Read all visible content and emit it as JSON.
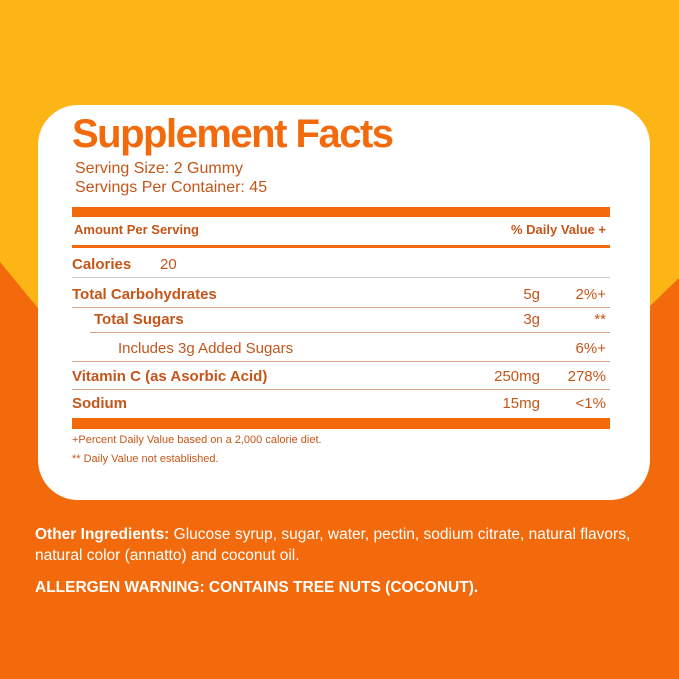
{
  "title": "Supplement Facts",
  "serving_size": "Serving Size: 2 Gummy",
  "servings_per_container": "Servings Per Container: 45",
  "header": {
    "amount": "Amount Per Serving",
    "daily_value": "% Daily Value +"
  },
  "calories": {
    "label": "Calories",
    "value": "20"
  },
  "rows": [
    {
      "label": "Total Carbohydrates",
      "amount": "5g",
      "dv": "2%+"
    },
    {
      "label": "Total Sugars",
      "amount": "3g",
      "dv": "**"
    },
    {
      "label": "Includes 3g Added Sugars",
      "amount": "",
      "dv": "6%+"
    },
    {
      "label": "Vitamin C (as Asorbic Acid)",
      "amount": "250mg",
      "dv": "278%"
    },
    {
      "label": "Sodium",
      "amount": "15mg",
      "dv": "<1%"
    }
  ],
  "footnotes": [
    "+Percent Daily Value based on a 2,000 calorie diet.",
    "** Daily Value not established."
  ],
  "ingredients": {
    "label": "Other Ingredients:",
    "text": " Glucose syrup, sugar, water, pectin, sodium citrate, natural flavors, natural color (annatto) and coconut oil."
  },
  "allergen": "ALLERGEN WARNING: CONTAINS TREE NUTS (COCONUT).",
  "colors": {
    "yellow": "#FDB515",
    "orange": "#F26A0C",
    "text": "#C4561A"
  }
}
